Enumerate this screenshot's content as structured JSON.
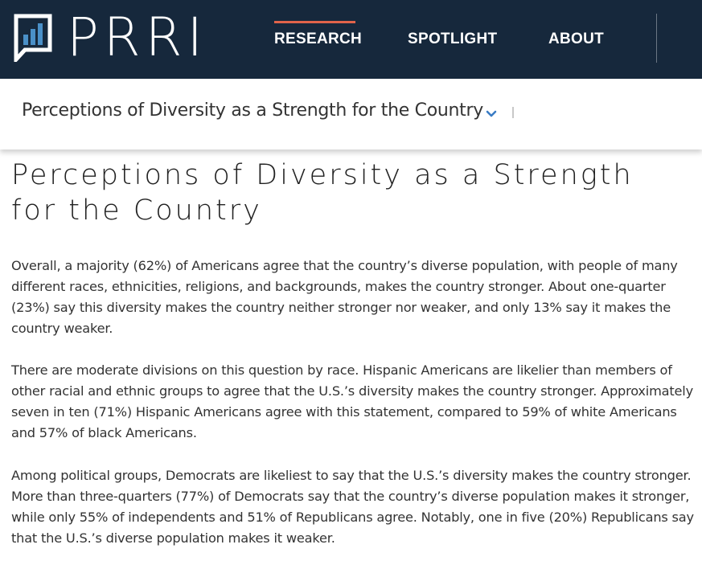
{
  "brand": {
    "logo_text": "PRRI",
    "colors": {
      "header_bg": "#16283c",
      "accent": "#e0634a",
      "logo_bars": "#4a90c8",
      "chevron": "#3a7cc4"
    }
  },
  "nav": {
    "items": [
      {
        "label": "RESEARCH",
        "active": true
      },
      {
        "label": "SPOTLIGHT",
        "active": false
      },
      {
        "label": "ABOUT",
        "active": false
      }
    ]
  },
  "subnav": {
    "title": "Perceptions of Diversity as a Strength for the Country",
    "icon": "chevron-down-icon"
  },
  "article": {
    "title": "Perceptions of Diversity as a Strength for the Country",
    "paragraphs": [
      "Overall, a majority (62%) of Americans agree that the country’s diverse population, with people of many different races, ethnicities, religions, and backgrounds, makes the country stronger. About one-quarter (23%) say this diversity makes the country neither stronger nor weaker, and only 13% say it makes the country weaker.",
      "There are moderate divisions on this question by race. Hispanic Americans are likelier than members of other racial and ethnic groups to agree that the U.S.’s diversity makes the country stronger. Approximately seven in ten (71%) Hispanic Americans agree with this statement, compared to 59% of white Americans and 57% of black Americans.",
      "Among political groups, Democrats are likeliest to say that the U.S.’s diversity makes the country stronger. More than three-quarters (77%) of Democrats say that the country’s diverse population makes it stronger, while only 55% of independents and 51% of Republicans agree. Notably, one in five (20%) Republicans say that the U.S.’s diverse population makes it weaker."
    ]
  }
}
